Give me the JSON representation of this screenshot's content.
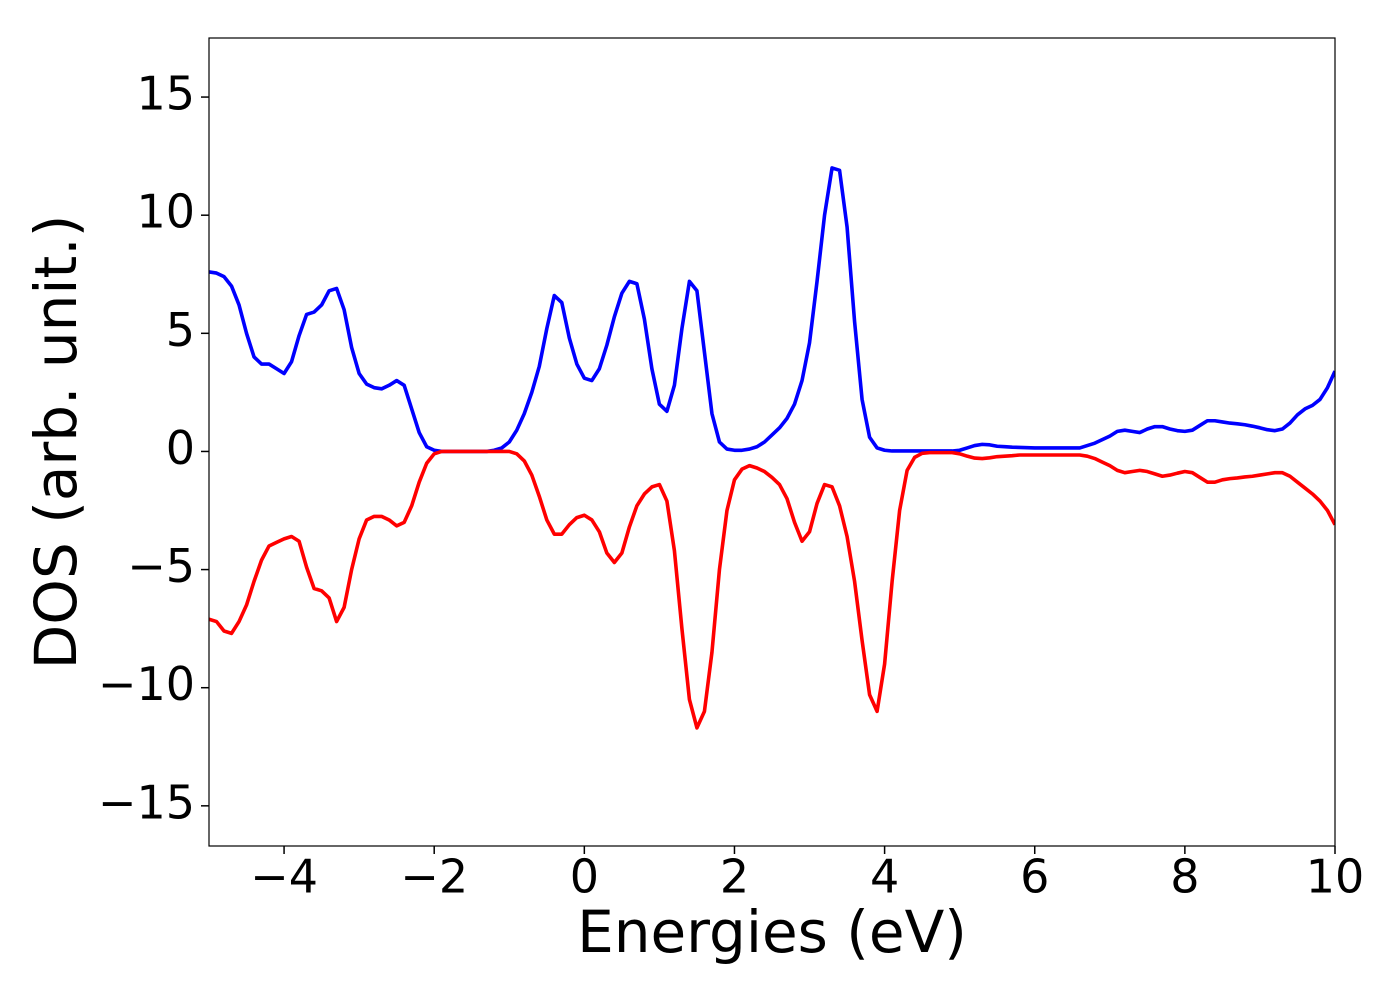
{
  "chart_data": {
    "type": "line",
    "xlabel": "Energies (eV)",
    "ylabel": "DOS (arb. unit.)",
    "xlim": [
      -5,
      10
    ],
    "ylim": [
      -16.7,
      17.5
    ],
    "xticks": [
      {
        "value": -4,
        "label": "−4"
      },
      {
        "value": -2,
        "label": "−2"
      },
      0,
      2,
      4,
      6,
      8,
      10
    ],
    "yticks": [
      {
        "value": -15,
        "label": "−15"
      },
      {
        "value": -10,
        "label": "−10"
      },
      {
        "value": -5,
        "label": "−5"
      },
      0,
      5,
      10,
      15
    ],
    "grid": false,
    "x": [
      -5.0,
      -4.9,
      -4.8,
      -4.7,
      -4.6,
      -4.5,
      -4.4,
      -4.3,
      -4.2,
      -4.1,
      -4.0,
      -3.9,
      -3.8,
      -3.7,
      -3.6,
      -3.5,
      -3.4,
      -3.3,
      -3.2,
      -3.1,
      -3.0,
      -2.9,
      -2.8,
      -2.7,
      -2.6,
      -2.5,
      -2.4,
      -2.3,
      -2.2,
      -2.1,
      -2.0,
      -1.9,
      -1.8,
      -1.7,
      -1.6,
      -1.5,
      -1.4,
      -1.3,
      -1.2,
      -1.1,
      -1.0,
      -0.9,
      -0.8,
      -0.7,
      -0.6,
      -0.5,
      -0.4,
      -0.3,
      -0.2,
      -0.1,
      0.0,
      0.1,
      0.2,
      0.3,
      0.4,
      0.5,
      0.6,
      0.7,
      0.8,
      0.9,
      1.0,
      1.1,
      1.2,
      1.3,
      1.4,
      1.5,
      1.6,
      1.7,
      1.8,
      1.9,
      2.0,
      2.1,
      2.2,
      2.3,
      2.4,
      2.5,
      2.6,
      2.7,
      2.8,
      2.9,
      3.0,
      3.1,
      3.2,
      3.3,
      3.4,
      3.5,
      3.6,
      3.7,
      3.8,
      3.9,
      4.0,
      4.1,
      4.2,
      4.3,
      4.4,
      4.5,
      4.6,
      4.7,
      4.8,
      4.9,
      5.0,
      5.1,
      5.2,
      5.3,
      5.4,
      5.5,
      5.6,
      5.7,
      5.8,
      5.9,
      6.0,
      6.1,
      6.2,
      6.3,
      6.4,
      6.5,
      6.6,
      6.7,
      6.8,
      6.9,
      7.0,
      7.1,
      7.2,
      7.3,
      7.4,
      7.5,
      7.6,
      7.7,
      7.8,
      7.9,
      8.0,
      8.1,
      8.2,
      8.3,
      8.4,
      8.5,
      8.6,
      8.7,
      8.8,
      8.9,
      9.0,
      9.1,
      9.2,
      9.3,
      9.4,
      9.5,
      9.6,
      9.7,
      9.8,
      9.9,
      10.0
    ],
    "series": [
      {
        "color": "#0000ff",
        "values": [
          7.6,
          7.55,
          7.4,
          7.0,
          6.2,
          5.0,
          4.0,
          3.7,
          3.7,
          3.5,
          3.3,
          3.8,
          4.9,
          5.8,
          5.9,
          6.2,
          6.8,
          6.9,
          6.0,
          4.4,
          3.3,
          2.85,
          2.7,
          2.65,
          2.8,
          3.0,
          2.8,
          1.8,
          0.8,
          0.2,
          0.05,
          0,
          0,
          0,
          0,
          0,
          0,
          0,
          0.05,
          0.15,
          0.4,
          0.9,
          1.6,
          2.5,
          3.6,
          5.2,
          6.6,
          6.3,
          4.8,
          3.7,
          3.1,
          3.0,
          3.5,
          4.5,
          5.7,
          6.7,
          7.2,
          7.1,
          5.6,
          3.5,
          2.0,
          1.7,
          2.8,
          5.2,
          7.2,
          6.8,
          4.2,
          1.6,
          0.4,
          0.1,
          0.05,
          0.05,
          0.1,
          0.2,
          0.4,
          0.7,
          1.0,
          1.4,
          2.0,
          3.0,
          4.6,
          7.2,
          10.0,
          12.0,
          11.9,
          9.5,
          5.5,
          2.2,
          0.6,
          0.15,
          0.05,
          0.02,
          0.02,
          0.02,
          0.02,
          0.02,
          0.02,
          0.02,
          0.02,
          0.02,
          0.05,
          0.15,
          0.25,
          0.3,
          0.28,
          0.22,
          0.2,
          0.18,
          0.17,
          0.16,
          0.15,
          0.15,
          0.15,
          0.15,
          0.15,
          0.15,
          0.15,
          0.25,
          0.35,
          0.5,
          0.65,
          0.85,
          0.9,
          0.85,
          0.8,
          0.95,
          1.05,
          1.05,
          0.95,
          0.88,
          0.85,
          0.9,
          1.1,
          1.3,
          1.3,
          1.25,
          1.2,
          1.17,
          1.13,
          1.07,
          1.0,
          0.92,
          0.88,
          0.95,
          1.2,
          1.55,
          1.8,
          1.95,
          2.2,
          2.7,
          3.4
        ]
      },
      {
        "color": "#ff0000",
        "values": [
          -7.1,
          -7.2,
          -7.6,
          -7.7,
          -7.2,
          -6.5,
          -5.5,
          -4.6,
          -4.0,
          -3.85,
          -3.7,
          -3.6,
          -3.8,
          -4.9,
          -5.8,
          -5.9,
          -6.2,
          -7.2,
          -6.6,
          -5.0,
          -3.7,
          -2.9,
          -2.75,
          -2.75,
          -2.9,
          -3.15,
          -3.0,
          -2.3,
          -1.3,
          -0.5,
          -0.1,
          0,
          0,
          0,
          0,
          0,
          0,
          0,
          0,
          0,
          0,
          -0.1,
          -0.4,
          -1.0,
          -1.9,
          -2.9,
          -3.5,
          -3.5,
          -3.1,
          -2.8,
          -2.7,
          -2.9,
          -3.4,
          -4.3,
          -4.7,
          -4.3,
          -3.2,
          -2.3,
          -1.8,
          -1.5,
          -1.4,
          -2.1,
          -4.2,
          -7.5,
          -10.5,
          -11.7,
          -11.0,
          -8.5,
          -5.0,
          -2.5,
          -1.2,
          -0.75,
          -0.6,
          -0.7,
          -0.85,
          -1.1,
          -1.4,
          -2.0,
          -3.0,
          -3.8,
          -3.4,
          -2.2,
          -1.4,
          -1.5,
          -2.3,
          -3.6,
          -5.5,
          -8.0,
          -10.3,
          -11.0,
          -9.0,
          -5.5,
          -2.5,
          -0.8,
          -0.25,
          -0.08,
          -0.05,
          -0.05,
          -0.05,
          -0.05,
          -0.1,
          -0.2,
          -0.28,
          -0.3,
          -0.27,
          -0.22,
          -0.2,
          -0.18,
          -0.15,
          -0.15,
          -0.15,
          -0.15,
          -0.15,
          -0.15,
          -0.15,
          -0.15,
          -0.15,
          -0.2,
          -0.3,
          -0.45,
          -0.6,
          -0.8,
          -0.9,
          -0.85,
          -0.8,
          -0.85,
          -0.95,
          -1.05,
          -1.0,
          -0.92,
          -0.85,
          -0.9,
          -1.1,
          -1.3,
          -1.3,
          -1.2,
          -1.15,
          -1.12,
          -1.08,
          -1.05,
          -1.0,
          -0.95,
          -0.9,
          -0.9,
          -1.05,
          -1.3,
          -1.55,
          -1.8,
          -2.1,
          -2.5,
          -3.1
        ]
      }
    ]
  }
}
